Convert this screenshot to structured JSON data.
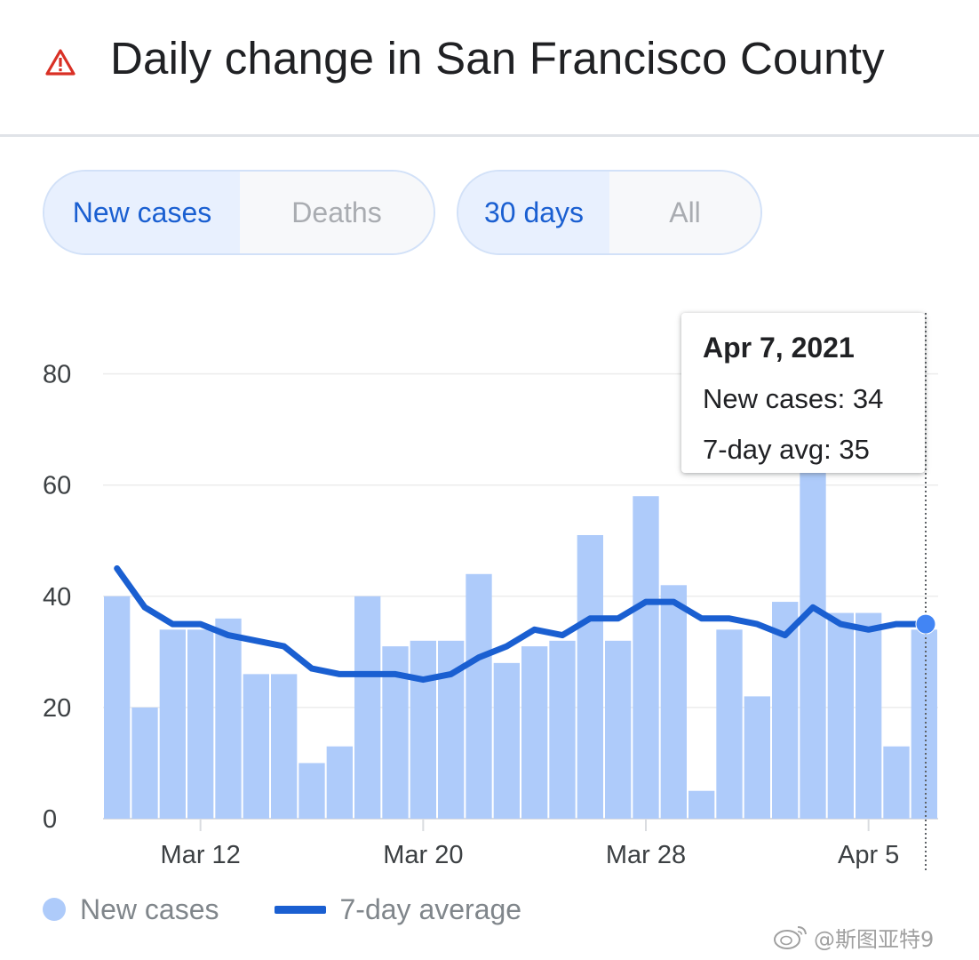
{
  "header": {
    "title": "Daily change in San Francisco County",
    "icon": "warning-triangle-icon",
    "icon_color": "#d93025"
  },
  "toggles": {
    "metric": {
      "options": [
        "New cases",
        "Deaths"
      ],
      "selected": "New cases"
    },
    "range": {
      "options": [
        "30 days",
        "All"
      ],
      "selected": "30 days"
    }
  },
  "chart_data": {
    "type": "bar",
    "title": "",
    "xlabel": "",
    "ylabel": "",
    "ylim": [
      0,
      90
    ],
    "yticks": [
      0,
      20,
      40,
      60,
      80
    ],
    "x_tick_labels": [
      {
        "label": "Mar 12",
        "date": "2021-03-12"
      },
      {
        "label": "Mar 20",
        "date": "2021-03-20"
      },
      {
        "label": "Mar 28",
        "date": "2021-03-28"
      },
      {
        "label": "Apr 5",
        "date": "2021-04-05"
      }
    ],
    "dates": [
      "2021-03-09",
      "2021-03-10",
      "2021-03-11",
      "2021-03-12",
      "2021-03-13",
      "2021-03-14",
      "2021-03-15",
      "2021-03-16",
      "2021-03-17",
      "2021-03-18",
      "2021-03-19",
      "2021-03-20",
      "2021-03-21",
      "2021-03-22",
      "2021-03-23",
      "2021-03-24",
      "2021-03-25",
      "2021-03-26",
      "2021-03-27",
      "2021-03-28",
      "2021-03-29",
      "2021-03-30",
      "2021-03-31",
      "2021-04-01",
      "2021-04-02",
      "2021-04-03",
      "2021-04-04",
      "2021-04-05",
      "2021-04-06",
      "2021-04-07"
    ],
    "series": [
      {
        "name": "New cases",
        "type": "bar",
        "color": "#aecbfa",
        "values": [
          40,
          20,
          34,
          34,
          36,
          26,
          26,
          10,
          13,
          40,
          31,
          32,
          32,
          44,
          28,
          31,
          32,
          51,
          32,
          58,
          42,
          5,
          34,
          22,
          39,
          63,
          37,
          37,
          13,
          34
        ]
      },
      {
        "name": "7-day average",
        "type": "line",
        "color": "#1a5fd1",
        "values": [
          45,
          38,
          35,
          35,
          33,
          32,
          31,
          27,
          26,
          26,
          26,
          25,
          26,
          29,
          31,
          34,
          33,
          36,
          36,
          39,
          39,
          36,
          36,
          35,
          33,
          38,
          35,
          34,
          35,
          35
        ]
      }
    ],
    "grid": true,
    "legend_position": "bottom-left",
    "highlight": {
      "date": "2021-04-07"
    }
  },
  "tooltip": {
    "date": "Apr 7, 2021",
    "new_cases": "New cases: 34",
    "avg": "7-day avg: 35"
  },
  "legend": {
    "bars_label": "New cases",
    "line_label": "7-day average"
  },
  "watermark": {
    "text": "@斯图亚特9"
  }
}
